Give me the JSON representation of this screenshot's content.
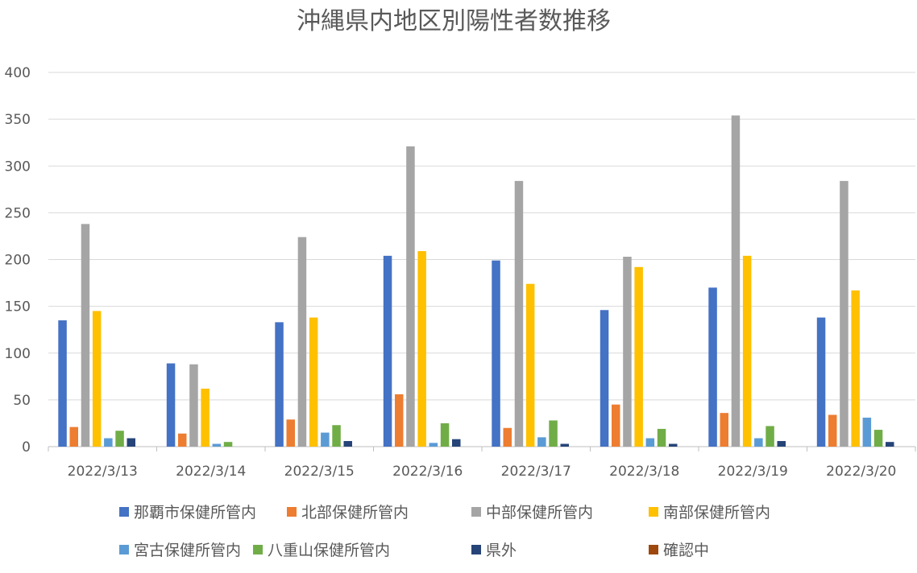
{
  "chart_data": {
    "type": "bar",
    "title": "沖縄県内地区別陽性者数推移",
    "xlabel": "",
    "ylabel": "",
    "ylim": [
      0,
      400
    ],
    "yticks": [
      0,
      50,
      100,
      150,
      200,
      250,
      300,
      350,
      400
    ],
    "grid": true,
    "legend_position": "bottom",
    "categories": [
      "2022/3/13",
      "2022/3/14",
      "2022/3/15",
      "2022/3/16",
      "2022/3/17",
      "2022/3/18",
      "2022/3/19",
      "2022/3/20"
    ],
    "series": [
      {
        "name": "那覇市保健所管内",
        "color": "#4472C4",
        "values": [
          135,
          89,
          133,
          204,
          199,
          146,
          170,
          138
        ]
      },
      {
        "name": "北部保健所管内",
        "color": "#ED7D31",
        "values": [
          21,
          14,
          29,
          56,
          20,
          45,
          36,
          34
        ]
      },
      {
        "name": "中部保健所管内",
        "color": "#A5A5A5",
        "values": [
          238,
          88,
          224,
          321,
          284,
          203,
          354,
          284
        ]
      },
      {
        "name": "南部保健所管内",
        "color": "#FFC000",
        "values": [
          145,
          62,
          138,
          209,
          174,
          192,
          204,
          167
        ]
      },
      {
        "name": "宮古保健所管内",
        "color": "#5B9BD5",
        "values": [
          9,
          3,
          15,
          4,
          10,
          9,
          9,
          31
        ]
      },
      {
        "name": "八重山保健所管内",
        "color": "#70AD47",
        "values": [
          17,
          5,
          23,
          25,
          28,
          19,
          22,
          18
        ]
      },
      {
        "name": "県外",
        "color": "#264478",
        "values": [
          9,
          0,
          6,
          8,
          3,
          3,
          6,
          5
        ]
      },
      {
        "name": "確認中",
        "color": "#9E480E",
        "values": [
          0,
          0,
          0,
          0,
          0,
          0,
          0,
          0
        ]
      }
    ]
  }
}
